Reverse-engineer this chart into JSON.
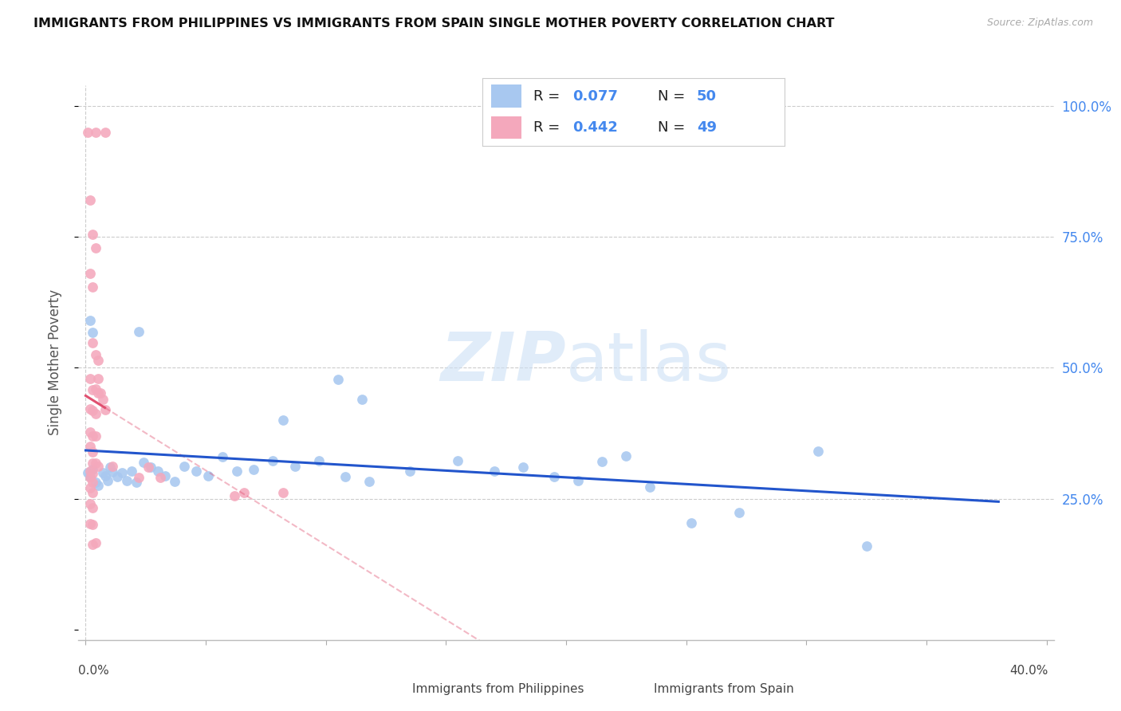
{
  "title": "IMMIGRANTS FROM PHILIPPINES VS IMMIGRANTS FROM SPAIN SINGLE MOTHER POVERTY CORRELATION CHART",
  "source": "Source: ZipAtlas.com",
  "ylabel": "Single Mother Poverty",
  "legend_blue_r": "0.077",
  "legend_blue_n": "50",
  "legend_pink_r": "0.442",
  "legend_pink_n": "49",
  "legend_blue_label": "Immigrants from Philippines",
  "legend_pink_label": "Immigrants from Spain",
  "watermark_zip": "ZIP",
  "watermark_atlas": "atlas",
  "blue_color": "#a8c8f0",
  "pink_color": "#f4a8bc",
  "blue_line_color": "#2255cc",
  "pink_line_color": "#e05070",
  "text_blue": "#4488ee",
  "text_dark": "#222222",
  "grid_color": "#cccccc",
  "xlim": [
    0.0,
    0.4
  ],
  "ylim": [
    0.0,
    1.0
  ],
  "blue_scatter_x": [
    0.001,
    0.002,
    0.003,
    0.004,
    0.005,
    0.007,
    0.008,
    0.009,
    0.01,
    0.011,
    0.013,
    0.015,
    0.017,
    0.019,
    0.021,
    0.024,
    0.027,
    0.03,
    0.033,
    0.037,
    0.041,
    0.046,
    0.051,
    0.057,
    0.063,
    0.07,
    0.078,
    0.087,
    0.097,
    0.108,
    0.002,
    0.003,
    0.022,
    0.082,
    0.105,
    0.115,
    0.155,
    0.17,
    0.182,
    0.195,
    0.205,
    0.215,
    0.225,
    0.235,
    0.252,
    0.272,
    0.305,
    0.325,
    0.118,
    0.135
  ],
  "blue_scatter_y": [
    0.3,
    0.292,
    0.305,
    0.282,
    0.276,
    0.3,
    0.293,
    0.285,
    0.311,
    0.301,
    0.292,
    0.3,
    0.284,
    0.303,
    0.281,
    0.32,
    0.311,
    0.302,
    0.293,
    0.283,
    0.312,
    0.303,
    0.294,
    0.33,
    0.303,
    0.305,
    0.322,
    0.312,
    0.322,
    0.292,
    0.59,
    0.568,
    0.57,
    0.4,
    0.478,
    0.44,
    0.322,
    0.303,
    0.311,
    0.292,
    0.284,
    0.321,
    0.331,
    0.272,
    0.203,
    0.224,
    0.341,
    0.159,
    0.283,
    0.302
  ],
  "pink_scatter_x": [
    0.001,
    0.004,
    0.008,
    0.002,
    0.003,
    0.004,
    0.002,
    0.003,
    0.003,
    0.004,
    0.005,
    0.002,
    0.003,
    0.004,
    0.005,
    0.006,
    0.007,
    0.002,
    0.003,
    0.004,
    0.002,
    0.003,
    0.004,
    0.002,
    0.003,
    0.005,
    0.008,
    0.003,
    0.004,
    0.005,
    0.002,
    0.003,
    0.002,
    0.003,
    0.002,
    0.003,
    0.002,
    0.003,
    0.002,
    0.003,
    0.011,
    0.022,
    0.026,
    0.031,
    0.066,
    0.082,
    0.003,
    0.004,
    0.062
  ],
  "pink_scatter_y": [
    0.95,
    0.95,
    0.95,
    0.82,
    0.755,
    0.73,
    0.68,
    0.655,
    0.548,
    0.525,
    0.515,
    0.48,
    0.458,
    0.46,
    0.452,
    0.452,
    0.44,
    0.422,
    0.418,
    0.412,
    0.378,
    0.37,
    0.37,
    0.35,
    0.34,
    0.48,
    0.42,
    0.318,
    0.318,
    0.312,
    0.302,
    0.298,
    0.29,
    0.282,
    0.27,
    0.262,
    0.24,
    0.232,
    0.202,
    0.2,
    0.312,
    0.291,
    0.31,
    0.291,
    0.262,
    0.262,
    0.162,
    0.165,
    0.255
  ]
}
